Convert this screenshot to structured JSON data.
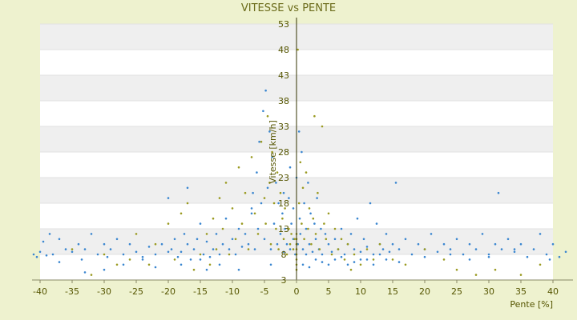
{
  "chart_data": {
    "type": "scatter",
    "title": "VITESSE vs PENTE",
    "xlabel": "Pente [%]",
    "ylabel": "Vitesse [km/h]",
    "xlim": [
      -40,
      40
    ],
    "ylim": [
      3,
      53
    ],
    "x_ticks": [
      "-40",
      "-35",
      "-30",
      "-25",
      "-20",
      "-15",
      "-10",
      "-5",
      "0",
      "5",
      "10",
      "15",
      "20",
      "25",
      "30",
      "35",
      "40"
    ],
    "y_ticks": [
      "53",
      "48",
      "43",
      "38",
      "33",
      "28",
      "23",
      "18",
      "13",
      "8",
      "3"
    ],
    "grid": "horizontal bands",
    "colors": {
      "series_1": "#3a86d0",
      "series_2": "#9a9a20",
      "band": "#efefef",
      "axis": "#333300"
    },
    "series": [
      {
        "color_key": "series_1",
        "points": [
          [
            -41,
            8
          ],
          [
            -40.5,
            7.5
          ],
          [
            -40,
            8.5
          ],
          [
            -39.5,
            10.5
          ],
          [
            -39,
            7.8
          ],
          [
            -38.5,
            12
          ],
          [
            -38,
            8
          ],
          [
            -37,
            11
          ],
          [
            -36,
            9
          ],
          [
            -35,
            8.5
          ],
          [
            -34,
            10
          ],
          [
            -33.5,
            7
          ],
          [
            -33,
            9
          ],
          [
            -32,
            12
          ],
          [
            -31,
            8
          ],
          [
            -30,
            10
          ],
          [
            -29.5,
            7.5
          ],
          [
            -29,
            9
          ],
          [
            -28,
            11
          ],
          [
            -27,
            8
          ],
          [
            -26,
            10
          ],
          [
            -25,
            8.5
          ],
          [
            -24,
            7.5
          ],
          [
            -23,
            9.5
          ],
          [
            -22,
            8
          ],
          [
            -21,
            10
          ],
          [
            -20,
            8.5
          ],
          [
            -19.5,
            9
          ],
          [
            -19,
            11
          ],
          [
            -18.5,
            7.5
          ],
          [
            -18,
            8.5
          ],
          [
            -17.5,
            12
          ],
          [
            -17,
            10
          ],
          [
            -16.5,
            7
          ],
          [
            -16,
            9
          ],
          [
            -15.5,
            11
          ],
          [
            -15,
            14
          ],
          [
            -14.5,
            8
          ],
          [
            -14,
            10.5
          ],
          [
            -13.5,
            7.5
          ],
          [
            -13,
            9
          ],
          [
            -12.5,
            12
          ],
          [
            -12,
            8
          ],
          [
            -11.5,
            10
          ],
          [
            -11,
            15
          ],
          [
            -10.5,
            9
          ],
          [
            -10,
            11
          ],
          [
            -9.5,
            8
          ],
          [
            -9,
            13
          ],
          [
            -8.5,
            9.5
          ],
          [
            -8,
            12
          ],
          [
            -7.5,
            10
          ],
          [
            -7,
            16
          ],
          [
            -6.8,
            20
          ],
          [
            -6.5,
            9
          ],
          [
            -6.2,
            24
          ],
          [
            -6,
            13
          ],
          [
            -5.8,
            30
          ],
          [
            -5.5,
            18
          ],
          [
            -5.2,
            36
          ],
          [
            -5,
            11
          ],
          [
            -4.8,
            40
          ],
          [
            -4.5,
            21
          ],
          [
            -4.2,
            32
          ],
          [
            -4,
            9
          ],
          [
            -3.8,
            27
          ],
          [
            -3.5,
            14
          ],
          [
            -3.2,
            22
          ],
          [
            -3,
            10
          ],
          [
            -2.8,
            18
          ],
          [
            -2.5,
            12
          ],
          [
            -2.2,
            16
          ],
          [
            -2,
            8.5
          ],
          [
            -1.8,
            13
          ],
          [
            -1.5,
            10
          ],
          [
            -1.2,
            19
          ],
          [
            -1,
            9
          ],
          [
            -0.8,
            14
          ],
          [
            -0.5,
            11
          ],
          [
            -0.2,
            8
          ],
          [
            0,
            23
          ],
          [
            0.2,
            10
          ],
          [
            0.4,
            32
          ],
          [
            0.6,
            12
          ],
          [
            0.8,
            28
          ],
          [
            1,
            9
          ],
          [
            1.2,
            18
          ],
          [
            1.5,
            13
          ],
          [
            1.8,
            22
          ],
          [
            2,
            10
          ],
          [
            2.2,
            16
          ],
          [
            2.5,
            8.5
          ],
          [
            2.8,
            14
          ],
          [
            3,
            11
          ],
          [
            3.2,
            19
          ],
          [
            3.5,
            9
          ],
          [
            3.8,
            13
          ],
          [
            4,
            8
          ],
          [
            4.5,
            12
          ],
          [
            5,
            10
          ],
          [
            5.5,
            8.5
          ],
          [
            6,
            11
          ],
          [
            6.5,
            9
          ],
          [
            7,
            13
          ],
          [
            7.5,
            8
          ],
          [
            8,
            10
          ],
          [
            8.5,
            12
          ],
          [
            9,
            9
          ],
          [
            9.5,
            15
          ],
          [
            10,
            8.5
          ],
          [
            10.5,
            11
          ],
          [
            11,
            9.5
          ],
          [
            11.5,
            18
          ],
          [
            12,
            8
          ],
          [
            12.5,
            14
          ],
          [
            13,
            10
          ],
          [
            13.5,
            9
          ],
          [
            14,
            12
          ],
          [
            14.5,
            8.5
          ],
          [
            15,
            10
          ],
          [
            15.5,
            22
          ],
          [
            16,
            9
          ],
          [
            17,
            11
          ],
          [
            18,
            8
          ],
          [
            19,
            10
          ],
          [
            20,
            9
          ],
          [
            21,
            12
          ],
          [
            22,
            8.5
          ],
          [
            23,
            10
          ],
          [
            24,
            9
          ],
          [
            25,
            11
          ],
          [
            26,
            8
          ],
          [
            27,
            10
          ],
          [
            28,
            9
          ],
          [
            29,
            12
          ],
          [
            30,
            8
          ],
          [
            31,
            10
          ],
          [
            31.5,
            20
          ],
          [
            32,
            9
          ],
          [
            33,
            11
          ],
          [
            34,
            8.5
          ],
          [
            35,
            10
          ],
          [
            36,
            7.5
          ],
          [
            37,
            9
          ],
          [
            38,
            12
          ],
          [
            39,
            8
          ],
          [
            40,
            10
          ],
          [
            41,
            7.5
          ],
          [
            42,
            8.5
          ],
          [
            39.5,
            7
          ],
          [
            -20,
            19
          ],
          [
            -17,
            21
          ],
          [
            -15,
            7
          ],
          [
            -12,
            6
          ],
          [
            -9,
            5
          ],
          [
            -7,
            17
          ],
          [
            -4,
            6
          ],
          [
            1,
            6
          ],
          [
            2,
            5.5
          ],
          [
            4,
            6.5
          ],
          [
            6,
            7
          ],
          [
            8,
            6
          ],
          [
            11,
            7
          ],
          [
            13,
            8
          ],
          [
            16,
            6.5
          ],
          [
            20,
            7.5
          ],
          [
            24,
            8
          ],
          [
            27,
            7
          ],
          [
            30,
            7.5
          ],
          [
            34,
            9
          ],
          [
            -27,
            6
          ],
          [
            -24,
            7
          ],
          [
            -30,
            5
          ],
          [
            -37,
            6.5
          ],
          [
            -33,
            4.5
          ],
          [
            -22,
            5.5
          ],
          [
            -18,
            6
          ],
          [
            -14,
            5
          ],
          [
            3,
            7
          ],
          [
            5,
            6
          ],
          [
            7,
            7.5
          ],
          [
            9,
            6.5
          ],
          [
            10,
            7
          ],
          [
            12,
            6
          ],
          [
            14,
            7
          ],
          [
            1.5,
            8
          ],
          [
            0.5,
            15
          ],
          [
            -0.5,
            17
          ],
          [
            -1,
            25
          ],
          [
            -2,
            20
          ]
        ]
      },
      {
        "color_key": "series_2",
        "points": [
          [
            -32,
            4
          ],
          [
            -28,
            6
          ],
          [
            -25,
            12
          ],
          [
            -22,
            10
          ],
          [
            -20,
            14
          ],
          [
            -19,
            7
          ],
          [
            -18,
            16
          ],
          [
            -17,
            18
          ],
          [
            -16,
            5
          ],
          [
            -15,
            8
          ],
          [
            -14,
            12
          ],
          [
            -13.5,
            6
          ],
          [
            -13,
            15
          ],
          [
            -12.5,
            9
          ],
          [
            -12,
            19
          ],
          [
            -11.5,
            13
          ],
          [
            -11,
            22
          ],
          [
            -10.5,
            8
          ],
          [
            -10,
            17
          ],
          [
            -9.5,
            11
          ],
          [
            -9,
            25
          ],
          [
            -8.5,
            14
          ],
          [
            -8,
            20
          ],
          [
            -7.5,
            9
          ],
          [
            -7,
            27
          ],
          [
            -6.5,
            16
          ],
          [
            -6,
            12
          ],
          [
            -5.5,
            30
          ],
          [
            -5,
            19
          ],
          [
            -4.8,
            14
          ],
          [
            -4.5,
            35
          ],
          [
            -4.2,
            22
          ],
          [
            -4,
            10
          ],
          [
            -3.8,
            28
          ],
          [
            -3.5,
            18
          ],
          [
            -3.2,
            13
          ],
          [
            -3,
            24
          ],
          [
            -2.8,
            9
          ],
          [
            -2.5,
            20
          ],
          [
            -2.2,
            15
          ],
          [
            -2,
            11
          ],
          [
            -1.8,
            17
          ],
          [
            -1.5,
            8
          ],
          [
            -1.2,
            13
          ],
          [
            -1,
            10
          ],
          [
            -0.8,
            12
          ],
          [
            -0.5,
            9
          ],
          [
            -0.3,
            11
          ],
          [
            0,
            5
          ],
          [
            0,
            6
          ],
          [
            0,
            7
          ],
          [
            0,
            8
          ],
          [
            0,
            9
          ],
          [
            0,
            10
          ],
          [
            0,
            11
          ],
          [
            0,
            12
          ],
          [
            0.2,
            48
          ],
          [
            0.4,
            18
          ],
          [
            0.6,
            26
          ],
          [
            0.8,
            14
          ],
          [
            1,
            21
          ],
          [
            1.2,
            11
          ],
          [
            1.5,
            24
          ],
          [
            1.8,
            13
          ],
          [
            2,
            17
          ],
          [
            2.3,
            10
          ],
          [
            2.6,
            15
          ],
          [
            2.8,
            35
          ],
          [
            3,
            12
          ],
          [
            3.3,
            20
          ],
          [
            3.6,
            9
          ],
          [
            4,
            33
          ],
          [
            4.3,
            14
          ],
          [
            4.6,
            11
          ],
          [
            5,
            16
          ],
          [
            5.5,
            8
          ],
          [
            6,
            13
          ],
          [
            6.5,
            9
          ],
          [
            7,
            11
          ],
          [
            7.5,
            7
          ],
          [
            8,
            10
          ],
          [
            8.5,
            5
          ],
          [
            9,
            8
          ],
          [
            10,
            6
          ],
          [
            11,
            9
          ],
          [
            12,
            7
          ],
          [
            13,
            10
          ],
          [
            15,
            7
          ],
          [
            17,
            6
          ],
          [
            20,
            9
          ],
          [
            23,
            7
          ],
          [
            25,
            5
          ],
          [
            28,
            4
          ],
          [
            31,
            5
          ],
          [
            35,
            4
          ],
          [
            38,
            6
          ],
          [
            -35,
            9
          ],
          [
            -30,
            8
          ],
          [
            -26,
            7
          ],
          [
            -23,
            6
          ]
        ]
      }
    ]
  }
}
